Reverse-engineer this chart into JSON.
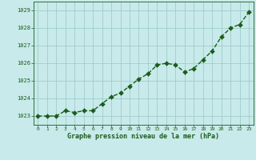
{
  "x": [
    0,
    1,
    2,
    3,
    4,
    5,
    6,
    7,
    8,
    9,
    10,
    11,
    12,
    13,
    14,
    15,
    16,
    17,
    18,
    19,
    20,
    21,
    22,
    23
  ],
  "y": [
    1023.0,
    1023.0,
    1023.0,
    1023.3,
    1023.2,
    1023.3,
    1023.3,
    1023.7,
    1024.1,
    1024.3,
    1024.7,
    1025.1,
    1025.4,
    1025.9,
    1026.0,
    1025.9,
    1025.5,
    1025.7,
    1026.2,
    1026.7,
    1027.5,
    1028.0,
    1028.2,
    1028.9
  ],
  "line_color": "#1a5c1a",
  "marker_color": "#1a5c1a",
  "bg_color": "#c8eaea",
  "grid_color": "#a0cccc",
  "xlabel": "Graphe pression niveau de la mer (hPa)",
  "xlabel_color": "#1a5c1a",
  "tick_color": "#1a5c1a",
  "ylim": [
    1022.5,
    1029.5
  ],
  "yticks": [
    1023,
    1024,
    1025,
    1026,
    1027,
    1028,
    1029
  ],
  "xlim": [
    -0.5,
    23.5
  ],
  "xticks": [
    0,
    1,
    2,
    3,
    4,
    5,
    6,
    7,
    8,
    9,
    10,
    11,
    12,
    13,
    14,
    15,
    16,
    17,
    18,
    19,
    20,
    21,
    22,
    23
  ],
  "marker_size": 3,
  "line_width": 1.0
}
